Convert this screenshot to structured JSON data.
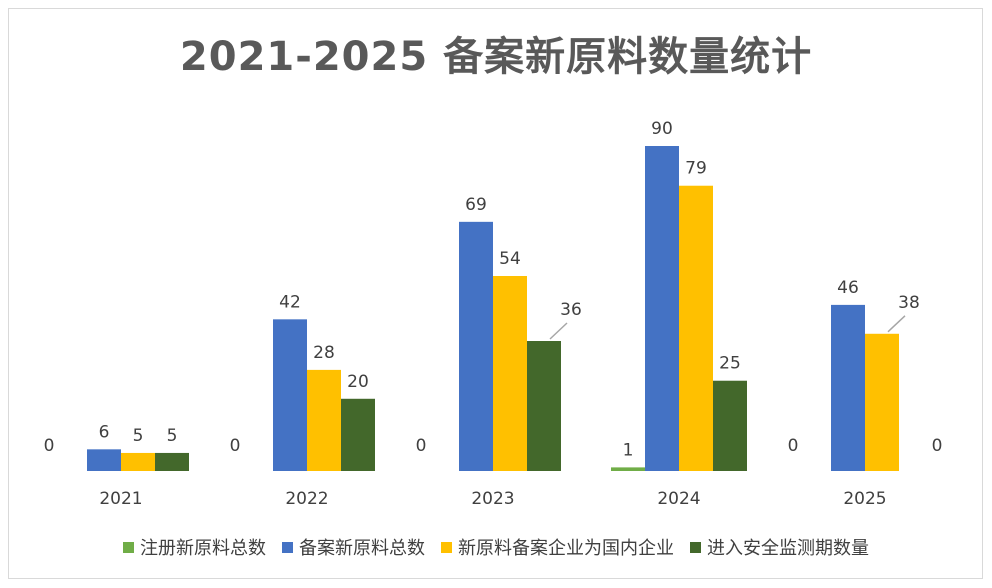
{
  "chart_data": {
    "type": "bar",
    "title": "2021-2025 备案新原料数量统计",
    "categories": [
      "2021",
      "2022",
      "2023",
      "2024",
      "2025"
    ],
    "series": [
      {
        "name": "注册新原料总数",
        "color": "#70ad47",
        "values": [
          0,
          0,
          0,
          1,
          0
        ]
      },
      {
        "name": "备案新原料总数",
        "color": "#4472c4",
        "values": [
          6,
          42,
          69,
          90,
          46
        ]
      },
      {
        "name": "新原料备案企业为国内企业",
        "color": "#ffc000",
        "values": [
          5,
          28,
          54,
          79,
          38
        ]
      },
      {
        "name": "进入安全监测期数量",
        "color": "#43682b",
        "values": [
          5,
          20,
          36,
          25,
          0
        ]
      }
    ],
    "ylim": [
      0,
      90
    ],
    "grid": false,
    "legend_position": "bottom",
    "label_color": "#404040",
    "leader_line_color": "#a6a6a6"
  }
}
